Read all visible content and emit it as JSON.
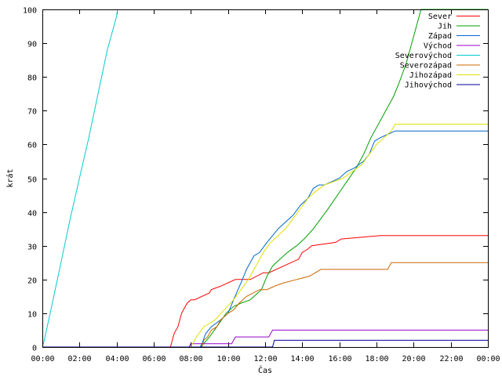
{
  "chart_data": {
    "type": "line",
    "title": "",
    "xlabel": "Čas",
    "ylabel": "krát",
    "xlim": [
      0,
      24
    ],
    "ylim": [
      0,
      100
    ],
    "x_ticks": [
      0,
      2,
      4,
      6,
      8,
      10,
      12,
      14,
      16,
      18,
      20,
      22,
      24
    ],
    "x_tick_labels": [
      "00:00",
      "02:00",
      "04:00",
      "06:00",
      "08:00",
      "10:00",
      "12:00",
      "14:00",
      "16:00",
      "18:00",
      "20:00",
      "22:00",
      "00:00"
    ],
    "y_ticks": [
      0,
      10,
      20,
      30,
      40,
      50,
      60,
      70,
      80,
      90,
      100
    ],
    "y_tick_labels": [
      "0",
      "10",
      "20",
      "30",
      "40",
      "50",
      "60",
      "70",
      "80",
      "90",
      "100"
    ],
    "legend_position": "top-right",
    "series": [
      {
        "name": "Sever",
        "color": "#ff0000",
        "x": [
          0,
          6.9,
          7.0,
          7.1,
          7.3,
          7.5,
          7.7,
          7.8,
          8.0,
          8.2,
          9.0,
          9.1,
          9.6,
          10.4,
          11.2,
          11.9,
          12.2,
          13.8,
          14.0,
          14.3,
          14.5,
          15.8,
          16.1,
          18.2,
          24
        ],
        "y": [
          0,
          0,
          2,
          4,
          6,
          10,
          12,
          13,
          14,
          14,
          16,
          17,
          18,
          20,
          20,
          22,
          22,
          26,
          28,
          29,
          30,
          31,
          32,
          33,
          33
        ]
      },
      {
        "name": "Jih",
        "color": "#00a000",
        "x": [
          0,
          8.5,
          8.7,
          9.0,
          9.4,
          9.9,
          10.3,
          10.7,
          11.2,
          11.8,
          12.1,
          12.4,
          12.8,
          13.2,
          13.7,
          14.1,
          14.6,
          15.0,
          15.4,
          15.9,
          16.4,
          16.9,
          17.3,
          17.7,
          18.1,
          18.5,
          18.9,
          19.2,
          19.6,
          20.1,
          20.4,
          24
        ],
        "y": [
          0,
          0,
          1,
          3,
          6,
          10,
          12,
          13,
          14,
          17,
          21,
          24,
          26,
          28,
          30,
          32,
          35,
          38,
          41,
          45,
          49,
          53,
          57,
          62,
          66,
          70,
          74,
          78,
          84,
          94,
          100,
          100
        ]
      },
      {
        "name": "Západ",
        "color": "#0066cc",
        "x": [
          0,
          8.5,
          8.6,
          8.8,
          9.1,
          9.6,
          10.0,
          10.3,
          10.7,
          11.0,
          11.4,
          11.7,
          12.1,
          12.4,
          12.7,
          13.1,
          13.5,
          13.9,
          14.3,
          14.6,
          14.9,
          15.2,
          15.6,
          16.0,
          16.4,
          16.8,
          17.3,
          17.6,
          17.9,
          18.2,
          18.6,
          19.0,
          24
        ],
        "y": [
          0,
          0,
          1,
          4,
          6,
          8,
          10,
          14,
          19,
          23,
          27,
          28,
          31,
          33,
          35,
          37,
          39,
          42,
          44,
          47,
          48,
          48,
          49,
          50,
          52,
          53,
          55,
          57,
          61,
          62,
          63,
          64,
          64
        ]
      },
      {
        "name": "Východ",
        "color": "#9900cc",
        "x": [
          0,
          7.9,
          8.0,
          10.2,
          10.4,
          12.2,
          12.4,
          24
        ],
        "y": [
          0,
          0,
          1,
          1,
          3,
          3,
          5,
          5
        ]
      },
      {
        "name": "Severovýchod",
        "color": "#00cccc",
        "x": [
          0,
          0.1,
          0.5,
          1.0,
          1.5,
          2.0,
          2.5,
          3.0,
          3.5,
          4.0,
          4.05
        ],
        "y": [
          0,
          2,
          12,
          25,
          38,
          50,
          62,
          75,
          88,
          98,
          100
        ]
      },
      {
        "name": "Severozápad",
        "color": "#cc6600",
        "x": [
          0,
          8.6,
          8.7,
          8.9,
          9.1,
          9.4,
          9.6,
          10.0,
          10.3,
          10.6,
          11.0,
          11.7,
          12.1,
          12.5,
          13.0,
          13.7,
          14.4,
          15.0,
          18.6,
          18.8,
          24
        ],
        "y": [
          0,
          0,
          2,
          3,
          5,
          6,
          8,
          10,
          11,
          13,
          15,
          17,
          17,
          18,
          19,
          20,
          21,
          23,
          23,
          25,
          25
        ]
      },
      {
        "name": "Jihozápad",
        "color": "#e0e000",
        "x": [
          0,
          8.0,
          8.1,
          8.3,
          8.7,
          9.3,
          9.8,
          10.3,
          10.7,
          11.1,
          11.5,
          11.9,
          12.3,
          12.7,
          13.1,
          13.5,
          13.9,
          14.3,
          14.7,
          15.2,
          15.7,
          16.2,
          16.7,
          17.2,
          17.6,
          18.0,
          18.4,
          18.8,
          19.0,
          24
        ],
        "y": [
          0,
          0,
          1,
          3,
          6,
          8,
          11,
          14,
          17,
          20,
          24,
          28,
          31,
          33,
          35,
          38,
          41,
          44,
          46,
          48,
          49,
          50,
          52,
          54,
          57,
          60,
          62,
          64,
          66,
          66
        ]
      },
      {
        "name": "Jihovýchod",
        "color": "#000099",
        "x": [
          0,
          12.4,
          12.5,
          24
        ],
        "y": [
          0,
          0,
          2,
          2
        ]
      }
    ]
  }
}
